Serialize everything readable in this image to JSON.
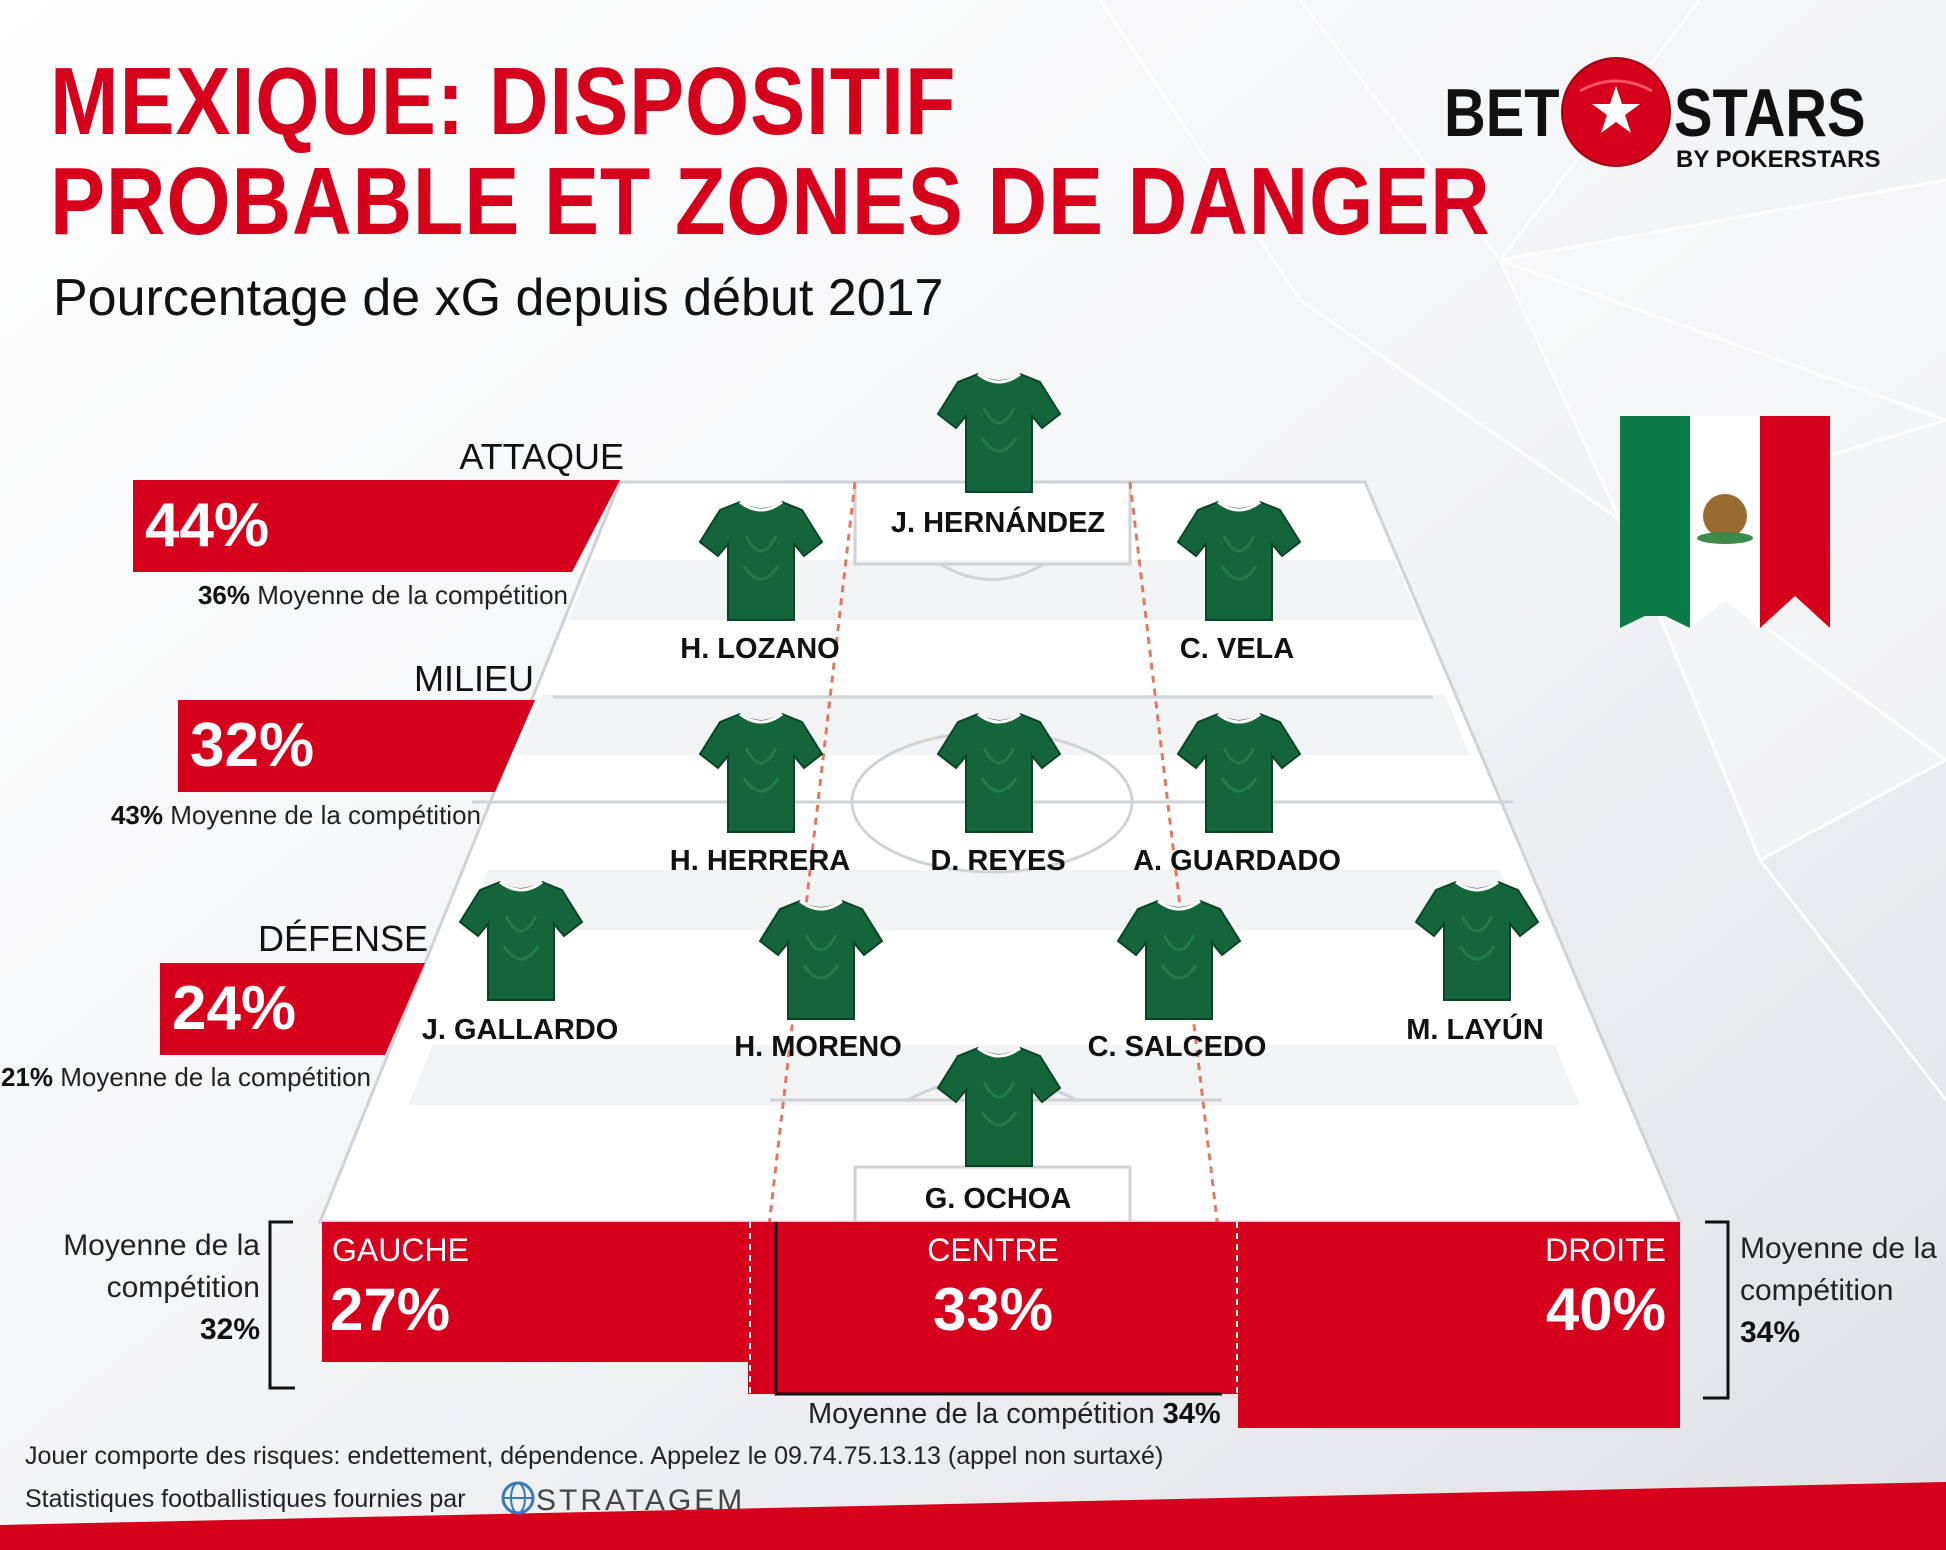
{
  "header": {
    "title_line1": "MEXIQUE: DISPOSITIF",
    "title_line2": "PROBABLE ET ZONES DE DANGER",
    "subtitle": "Pourcentage de xG depuis début 2017"
  },
  "logo": {
    "bet": "BET",
    "stars": "STARS",
    "by": "BY POKERSTARS"
  },
  "lines": {
    "attack": {
      "label": "ATTAQUE",
      "value": "44%",
      "avg_value": "36%",
      "avg_text": "Moyenne de la compétition"
    },
    "midfield": {
      "label": "MILIEU",
      "value": "32%",
      "avg_value": "43%",
      "avg_text": "Moyenne de la compétition"
    },
    "defense": {
      "label": "DÉFENSE",
      "value": "24%",
      "avg_value": "21%",
      "avg_text": "Moyenne de la compétition"
    }
  },
  "players": {
    "hernandez": "J. HERNÁNDEZ",
    "lozano": "H. LOZANO",
    "vela": "C. VELA",
    "herrera": "H. HERRERA",
    "reyes": "D. REYES",
    "guardado": "A. GUARDADO",
    "gallardo": "J. GALLARDO",
    "moreno": "H. MORENO",
    "salcedo": "C. SALCEDO",
    "layun": "M. LAYÚN",
    "ochoa": "G. OCHOA"
  },
  "zones": {
    "left": {
      "label": "GAUCHE",
      "value": "27%",
      "avg_line1": "Moyenne de la",
      "avg_line2": "compétition",
      "avg_value": "32%"
    },
    "center": {
      "label": "CENTRE",
      "value": "33%",
      "avg_text": "Moyenne de la compétition",
      "avg_value": "34%"
    },
    "right": {
      "label": "DROITE",
      "value": "40%",
      "avg_line1": "Moyenne de la",
      "avg_line2": "compétition",
      "avg_value": "34%"
    }
  },
  "footer": {
    "disclaimer": "Jouer comporte des risques: endettement, dépendence. Appelez le 09.74.75.13.13 (appel non surtaxé)",
    "credit": "Statistiques footballistiques fournies par",
    "provider": "STRATAGEM"
  },
  "colors": {
    "red": "#d6001c",
    "shirt": "#14663a",
    "text": "#111111"
  }
}
